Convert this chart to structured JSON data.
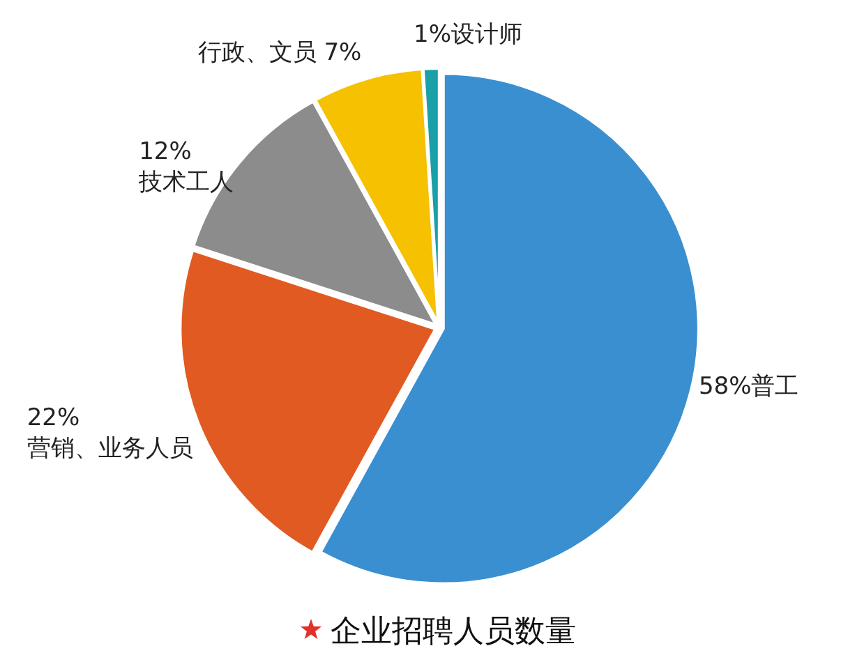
{
  "chart_data": {
    "type": "pie",
    "title": "企业招聘人员数量",
    "categories": [
      "普工",
      "营销、业务人员",
      "技术工人",
      "行政、文员",
      "设计师"
    ],
    "values": [
      58,
      22,
      12,
      7,
      1
    ],
    "value_labels": [
      "58%",
      "22%",
      "12%",
      "7%",
      "1%"
    ],
    "colors": [
      "#3a8fd0",
      "#e05a22",
      "#8c8c8c",
      "#f5c100",
      "#1aa0a6"
    ]
  }
}
